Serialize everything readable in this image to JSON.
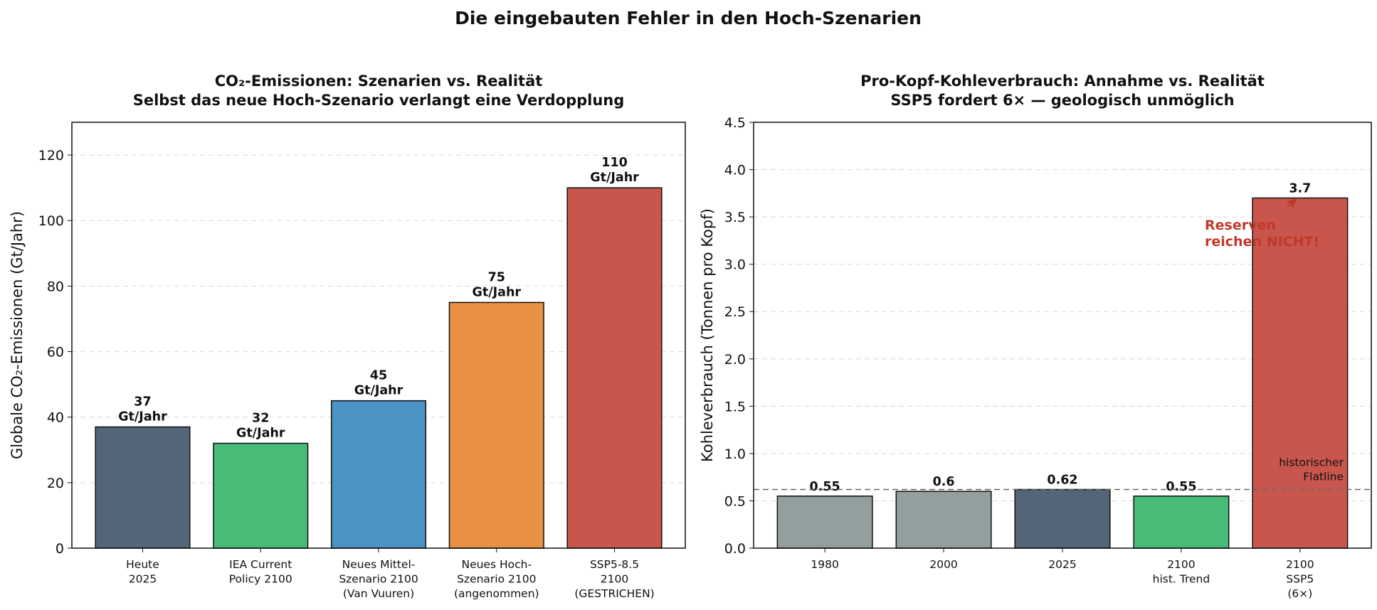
{
  "figure_title": "Die eingebauten Fehler in den Hoch-Szenarien",
  "chart_data": [
    {
      "type": "bar",
      "title": [
        "CO₂-Emissionen: Szenarien vs. Realität",
        "Selbst das neue Hoch-Szenario verlangt eine Verdopplung"
      ],
      "xlabel": "",
      "ylabel": "Globale CO₂-Emissionen (Gt/Jahr)",
      "ylim": [
        0,
        130
      ],
      "yticks": [
        0,
        20,
        40,
        60,
        80,
        100,
        120
      ],
      "grid": "y-dashed",
      "categories": [
        [
          "Heute",
          "2025"
        ],
        [
          "IEA Current",
          "Policy 2100"
        ],
        [
          "Neues Mittel-",
          "Szenario 2100",
          "(Van Vuuren)"
        ],
        [
          "Neues Hoch-",
          "Szenario 2100",
          "(angenommen)"
        ],
        [
          "SSP5-8.5",
          "2100",
          "(GESTRICHEN)"
        ]
      ],
      "values": [
        37,
        32,
        45,
        75,
        110
      ],
      "value_labels": [
        [
          "37",
          "Gt/Jahr"
        ],
        [
          "32",
          "Gt/Jahr"
        ],
        [
          "45",
          "Gt/Jahr"
        ],
        [
          "75",
          "Gt/Jahr"
        ],
        [
          "110",
          "Gt/Jahr"
        ]
      ],
      "colors": [
        "#536577",
        "#48bb78",
        "#4a93c4",
        "#e89142",
        "#c9564d"
      ]
    },
    {
      "type": "bar",
      "title": [
        "Pro-Kopf-Kohleverbrauch: Annahme vs. Realität",
        "SSP5 fordert 6× — geologisch unmöglich"
      ],
      "xlabel": "",
      "ylabel": "Kohleverbrauch (Tonnen pro Kopf)",
      "ylim": [
        0,
        4.5
      ],
      "yticks": [
        "0.0",
        "0.5",
        "1.0",
        "1.5",
        "2.0",
        "2.5",
        "3.0",
        "3.5",
        "4.0",
        "4.5"
      ],
      "grid": "y-dashed",
      "categories": [
        [
          "1980"
        ],
        [
          "2000"
        ],
        [
          "2025"
        ],
        [
          "2100",
          "hist. Trend"
        ],
        [
          "2100",
          "SSP5",
          "(6×)"
        ]
      ],
      "values": [
        0.55,
        0.6,
        0.62,
        0.55,
        3.7
      ],
      "value_labels": [
        "0.55",
        "0.6",
        "0.62",
        "0.55",
        "3.7"
      ],
      "colors": [
        "#939f9e",
        "#939f9e",
        "#536577",
        "#48bb78",
        "#c9564d"
      ],
      "reference_line": {
        "value": 0.62,
        "label": [
          "historischer",
          "Flatline"
        ],
        "color": "#666666"
      },
      "annotation": {
        "text": [
          "Reserven",
          "reichen NICHT!"
        ],
        "color": "#c0392b",
        "points_to_category": 4
      }
    }
  ]
}
